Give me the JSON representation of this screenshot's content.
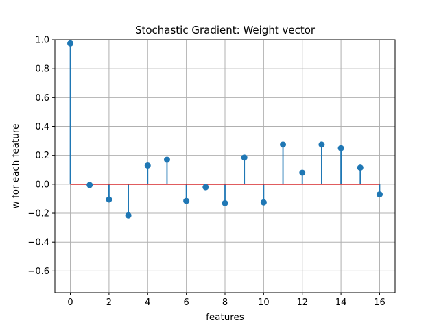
{
  "chart_data": {
    "type": "stem",
    "title": "Stochastic Gradient: Weight vector",
    "xlabel": "features",
    "ylabel": "w for each feature",
    "xlim": [
      -0.8,
      16.8
    ],
    "ylim": [
      -0.75,
      1.0
    ],
    "x_ticks": [
      0,
      2,
      4,
      6,
      8,
      10,
      12,
      14,
      16
    ],
    "y_ticks": [
      -0.6,
      -0.4,
      -0.2,
      0.0,
      0.2,
      0.4,
      0.6,
      0.8,
      1.0
    ],
    "x_tick_labels": [
      "0",
      "2",
      "4",
      "6",
      "8",
      "10",
      "12",
      "14",
      "16"
    ],
    "y_tick_labels": [
      "−0.6",
      "−0.4",
      "−0.2",
      "0.0",
      "0.2",
      "0.4",
      "0.6",
      "0.8",
      "1.0"
    ],
    "grid": true,
    "baseline": 0.0,
    "x": [
      0,
      1,
      2,
      3,
      4,
      5,
      6,
      7,
      8,
      9,
      10,
      11,
      12,
      13,
      14,
      15,
      16
    ],
    "values": [
      0.975,
      -0.005,
      -0.105,
      -0.215,
      0.13,
      0.17,
      -0.115,
      -0.02,
      -0.13,
      0.185,
      -0.125,
      0.275,
      0.08,
      0.275,
      0.25,
      0.115,
      -0.07
    ],
    "colors": {
      "stem": "#1f77b4",
      "marker": "#1f77b4",
      "baseline": "#d62728",
      "grid": "#b0b0b0",
      "axes": "#000000"
    }
  }
}
